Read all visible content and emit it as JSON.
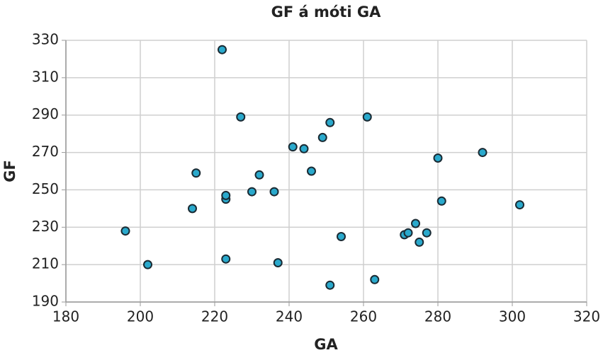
{
  "chart_data": {
    "type": "scatter",
    "title": "GF á móti GA",
    "x_label": "GA",
    "y_label": "GF",
    "series": [
      {
        "name": "GF",
        "color": "#2aa9cc",
        "x": [
          196,
          202,
          214,
          215,
          222,
          223,
          223,
          223,
          227,
          230,
          232,
          236,
          237,
          241,
          244,
          246,
          249,
          251,
          251,
          254,
          261,
          263,
          271,
          272,
          274,
          275,
          277,
          280,
          281,
          292,
          302
        ],
        "values": [
          228,
          210,
          240,
          259,
          325,
          245,
          247,
          213,
          289,
          249,
          258,
          249,
          211,
          273,
          272,
          260,
          278,
          286,
          199,
          225,
          289,
          202,
          226,
          227,
          232,
          222,
          227,
          267,
          244,
          270,
          242
        ]
      }
    ],
    "xlim": [
      180,
      320
    ],
    "xticks": [
      180,
      200,
      220,
      240,
      260,
      280,
      300,
      320
    ],
    "ylim": [
      190,
      330
    ],
    "yticks": [
      190,
      210,
      230,
      250,
      270,
      290,
      310,
      330
    ],
    "grid": true
  }
}
